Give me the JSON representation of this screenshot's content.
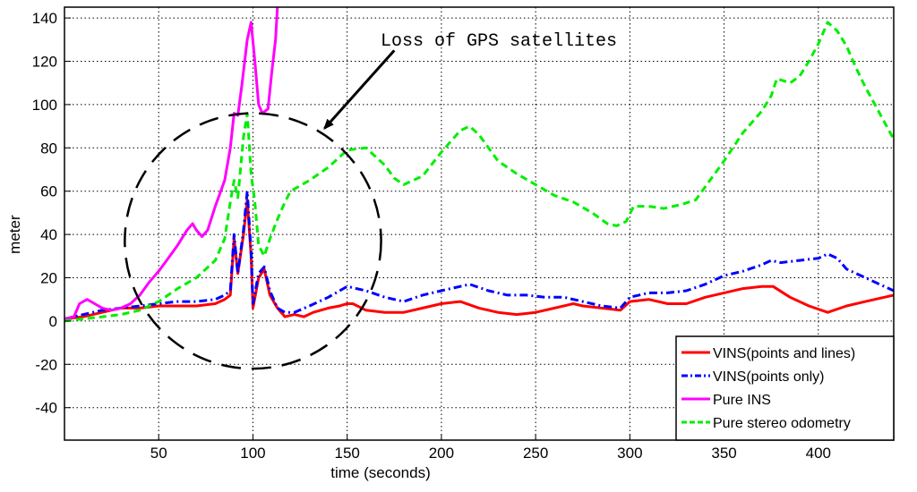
{
  "chart_data": {
    "type": "line",
    "title": "",
    "xlabel": "time (seconds)",
    "ylabel": "meter",
    "xlim": [
      0,
      440
    ],
    "ylim": [
      -55,
      145
    ],
    "xticks": [
      50,
      100,
      150,
      200,
      250,
      300,
      350,
      400
    ],
    "yticks": [
      -40,
      -20,
      0,
      20,
      40,
      60,
      80,
      100,
      120,
      140
    ],
    "grid": true,
    "legend_position": "bottom-right",
    "annotation": {
      "text": "Loss of GPS satellites",
      "circle_center": [
        100,
        37
      ],
      "circle_radii": [
        68,
        59
      ],
      "arrow_from": [
        175,
        125
      ],
      "arrow_to": [
        138,
        89
      ]
    },
    "series": [
      {
        "name": "VINS(points and lines)",
        "color": "#ff0000",
        "style": "solid",
        "points": [
          [
            0,
            1
          ],
          [
            10,
            2
          ],
          [
            20,
            4
          ],
          [
            30,
            6
          ],
          [
            40,
            6
          ],
          [
            50,
            7
          ],
          [
            60,
            7
          ],
          [
            70,
            7
          ],
          [
            80,
            8
          ],
          [
            85,
            10
          ],
          [
            88,
            12
          ],
          [
            90,
            38
          ],
          [
            92,
            22
          ],
          [
            95,
            40
          ],
          [
            97,
            56
          ],
          [
            99,
            30
          ],
          [
            100,
            6
          ],
          [
            103,
            20
          ],
          [
            106,
            24
          ],
          [
            109,
            12
          ],
          [
            113,
            6
          ],
          [
            117,
            2
          ],
          [
            122,
            3
          ],
          [
            127,
            2
          ],
          [
            132,
            4
          ],
          [
            140,
            6
          ],
          [
            146,
            7
          ],
          [
            150,
            8
          ],
          [
            153,
            8
          ],
          [
            160,
            5
          ],
          [
            170,
            4
          ],
          [
            180,
            4
          ],
          [
            190,
            6
          ],
          [
            200,
            8
          ],
          [
            210,
            9
          ],
          [
            220,
            6
          ],
          [
            230,
            4
          ],
          [
            240,
            3
          ],
          [
            250,
            4
          ],
          [
            260,
            6
          ],
          [
            270,
            8
          ],
          [
            275,
            7
          ],
          [
            285,
            6
          ],
          [
            295,
            5
          ],
          [
            300,
            9
          ],
          [
            310,
            10
          ],
          [
            320,
            8
          ],
          [
            330,
            8
          ],
          [
            340,
            11
          ],
          [
            350,
            13
          ],
          [
            360,
            15
          ],
          [
            370,
            16
          ],
          [
            376,
            16
          ],
          [
            385,
            11
          ],
          [
            395,
            7
          ],
          [
            405,
            4
          ],
          [
            415,
            7
          ],
          [
            425,
            9
          ],
          [
            435,
            11
          ],
          [
            440,
            12
          ]
        ]
      },
      {
        "name": "VINS(points only)",
        "color": "#0000ff",
        "style": "dashdot",
        "points": [
          [
            0,
            1
          ],
          [
            10,
            3
          ],
          [
            20,
            5
          ],
          [
            30,
            6
          ],
          [
            40,
            7
          ],
          [
            50,
            8
          ],
          [
            60,
            9
          ],
          [
            70,
            9
          ],
          [
            80,
            10
          ],
          [
            85,
            12
          ],
          [
            88,
            14
          ],
          [
            90,
            40
          ],
          [
            92,
            22
          ],
          [
            95,
            42
          ],
          [
            97,
            60
          ],
          [
            99,
            32
          ],
          [
            100,
            8
          ],
          [
            103,
            22
          ],
          [
            106,
            25
          ],
          [
            109,
            14
          ],
          [
            113,
            6
          ],
          [
            117,
            4
          ],
          [
            122,
            4
          ],
          [
            130,
            7
          ],
          [
            140,
            11
          ],
          [
            150,
            16
          ],
          [
            160,
            14
          ],
          [
            170,
            11
          ],
          [
            180,
            9
          ],
          [
            190,
            12
          ],
          [
            200,
            14
          ],
          [
            210,
            16
          ],
          [
            215,
            17
          ],
          [
            225,
            14
          ],
          [
            235,
            12
          ],
          [
            245,
            12
          ],
          [
            255,
            11
          ],
          [
            265,
            11
          ],
          [
            275,
            9
          ],
          [
            285,
            7
          ],
          [
            295,
            6
          ],
          [
            300,
            11
          ],
          [
            310,
            13
          ],
          [
            320,
            13
          ],
          [
            330,
            14
          ],
          [
            340,
            17
          ],
          [
            350,
            21
          ],
          [
            360,
            23
          ],
          [
            370,
            26
          ],
          [
            375,
            28
          ],
          [
            380,
            27
          ],
          [
            390,
            28
          ],
          [
            400,
            29
          ],
          [
            405,
            31
          ],
          [
            410,
            29
          ],
          [
            415,
            24
          ],
          [
            425,
            20
          ],
          [
            435,
            16
          ],
          [
            440,
            14
          ]
        ]
      },
      {
        "name": "Pure INS",
        "color": "#ff00ff",
        "style": "solid",
        "points": [
          [
            0,
            1
          ],
          [
            5,
            2
          ],
          [
            8,
            8
          ],
          [
            12,
            10
          ],
          [
            16,
            8
          ],
          [
            20,
            6
          ],
          [
            25,
            5
          ],
          [
            30,
            6
          ],
          [
            35,
            8
          ],
          [
            40,
            12
          ],
          [
            45,
            18
          ],
          [
            50,
            23
          ],
          [
            55,
            29
          ],
          [
            60,
            35
          ],
          [
            65,
            42
          ],
          [
            68,
            45
          ],
          [
            70,
            42
          ],
          [
            73,
            39
          ],
          [
            76,
            42
          ],
          [
            80,
            53
          ],
          [
            85,
            65
          ],
          [
            88,
            80
          ],
          [
            90,
            96
          ],
          [
            92,
            95
          ],
          [
            94,
            108
          ],
          [
            97,
            130
          ],
          [
            99,
            138
          ],
          [
            101,
            120
          ],
          [
            103,
            100
          ],
          [
            105,
            96
          ],
          [
            108,
            98
          ],
          [
            110,
            115
          ],
          [
            112,
            130
          ],
          [
            113,
            145
          ]
        ]
      },
      {
        "name": "Pure stereo odometry",
        "color": "#00ee00",
        "style": "dashed",
        "points": [
          [
            0,
            0
          ],
          [
            10,
            1
          ],
          [
            20,
            2
          ],
          [
            30,
            3
          ],
          [
            40,
            5
          ],
          [
            50,
            9
          ],
          [
            60,
            15
          ],
          [
            70,
            20
          ],
          [
            80,
            28
          ],
          [
            85,
            38
          ],
          [
            88,
            55
          ],
          [
            90,
            65
          ],
          [
            92,
            57
          ],
          [
            95,
            85
          ],
          [
            97,
            96
          ],
          [
            99,
            68
          ],
          [
            101,
            55
          ],
          [
            103,
            35
          ],
          [
            106,
            30
          ],
          [
            109,
            38
          ],
          [
            113,
            47
          ],
          [
            117,
            55
          ],
          [
            120,
            60
          ],
          [
            130,
            65
          ],
          [
            140,
            71
          ],
          [
            150,
            79
          ],
          [
            160,
            80
          ],
          [
            170,
            72
          ],
          [
            175,
            66
          ],
          [
            180,
            63
          ],
          [
            190,
            67
          ],
          [
            200,
            78
          ],
          [
            210,
            88
          ],
          [
            215,
            90
          ],
          [
            220,
            86
          ],
          [
            230,
            74
          ],
          [
            240,
            68
          ],
          [
            250,
            63
          ],
          [
            260,
            58
          ],
          [
            270,
            55
          ],
          [
            280,
            50
          ],
          [
            288,
            45
          ],
          [
            293,
            44
          ],
          [
            298,
            46
          ],
          [
            302,
            53
          ],
          [
            310,
            53
          ],
          [
            318,
            52
          ],
          [
            328,
            54
          ],
          [
            335,
            56
          ],
          [
            340,
            62
          ],
          [
            350,
            74
          ],
          [
            360,
            87
          ],
          [
            370,
            97
          ],
          [
            375,
            104
          ],
          [
            378,
            112
          ],
          [
            385,
            110
          ],
          [
            390,
            113
          ],
          [
            395,
            120
          ],
          [
            400,
            128
          ],
          [
            405,
            138
          ],
          [
            410,
            134
          ],
          [
            415,
            127
          ],
          [
            420,
            117
          ],
          [
            425,
            108
          ],
          [
            430,
            100
          ],
          [
            435,
            92
          ],
          [
            440,
            84
          ]
        ]
      }
    ]
  }
}
